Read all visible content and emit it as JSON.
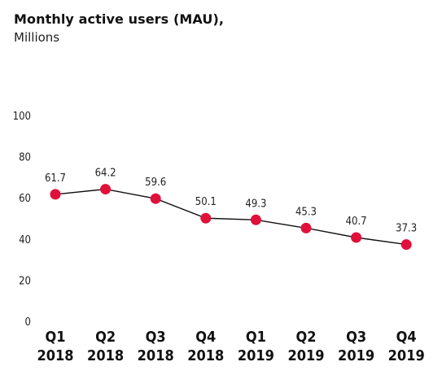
{
  "chart_data": {
    "type": "line",
    "title": "Monthly active users (MAU),",
    "subtitle": "Millions",
    "categories": [
      [
        "Q1",
        "2018"
      ],
      [
        "Q2",
        "2018"
      ],
      [
        "Q3",
        "2018"
      ],
      [
        "Q4",
        "2018"
      ],
      [
        "Q1",
        "2019"
      ],
      [
        "Q2",
        "2019"
      ],
      [
        "Q3",
        "2019"
      ],
      [
        "Q4",
        "2019"
      ]
    ],
    "series": [
      {
        "values": [
          61.7,
          64.2,
          59.6,
          50.1,
          49.3,
          45.3,
          40.7,
          37.3
        ],
        "value_labels": [
          "61.7",
          "64.2",
          "59.6",
          "50.1",
          "49.3",
          "45.3",
          "40.7",
          "37.3"
        ]
      }
    ],
    "yticks": [
      0,
      20,
      40,
      60,
      80,
      100
    ],
    "ylim": [
      0,
      100
    ],
    "grid": false,
    "colors": {
      "marker": "#e0103a",
      "line": "#111111"
    }
  }
}
